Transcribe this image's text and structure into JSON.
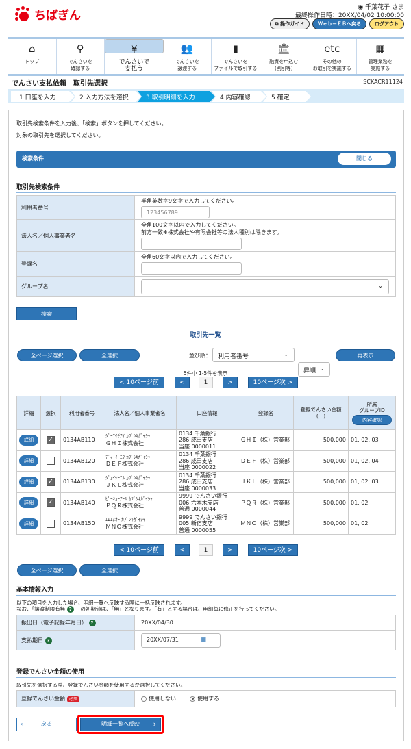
{
  "header": {
    "logo_text": "ちばぎん",
    "user_name": "千葉花子",
    "user_suffix": " さま",
    "last_op_label": "最終操作日時：",
    "last_op_time": "20XX/04/02 10:00:00",
    "guide_button": "操作ガイド",
    "web_eb_button": "Ｗｅｂ－ＥＢへ戻る",
    "logout_button": "ログアウト"
  },
  "nav": [
    {
      "icon": "home-icon",
      "glyph": "⌂",
      "label": "トップ"
    },
    {
      "icon": "search-icon",
      "glyph": "⚲",
      "label": "でんさいを\n確認する"
    },
    {
      "icon": "yen-doc-icon",
      "glyph": "¥",
      "label": "でんさいで\n支払う"
    },
    {
      "icon": "users-icon",
      "glyph": "👥",
      "label": "でんさいを\n譲渡する"
    },
    {
      "icon": "file-icon",
      "glyph": "▮",
      "label": "でんさいを\nファイルで取引する"
    },
    {
      "icon": "bank-icon",
      "glyph": "🏛",
      "label": "融資を申込む\n(割引等)"
    },
    {
      "icon": "etc-icon",
      "glyph": "etc",
      "label": "その他の\nお取引を実施する"
    },
    {
      "icon": "admin-icon",
      "glyph": "▦",
      "label": "管理業務を\n実施する"
    }
  ],
  "page": {
    "title": "でんさい支払依頼　取引先選択",
    "code": "SCKACR11124"
  },
  "steps": [
    "1 口座を入力",
    "2 入力方法を選択",
    "3 取引明細を入力",
    "4 内容確認",
    "5 確定"
  ],
  "instructions": [
    "取引先検索条件を入力後、「検索」ボタンを押してください。",
    "対象の取引先を選択してください。"
  ],
  "search_panel": {
    "title": "検索条件",
    "close": "閉じる",
    "heading": "取引先検索条件",
    "fields": [
      {
        "label": "利用者番号",
        "hint": "半角英数字9文字で入力してください。",
        "placeholder": "123456789"
      },
      {
        "label": "法人名／個人事業者名",
        "hint": "全角100文字以内で入力してください。",
        "hint2": "前方一致※株式会社や有限会社等の法人種別は除きます。"
      },
      {
        "label": "登録名",
        "hint": "全角60文字以内で入力してください。"
      },
      {
        "label": "グループ名"
      }
    ],
    "search_button": "検索"
  },
  "list": {
    "title": "取引先一覧",
    "select_all_pages": "全ページ選択",
    "select_all": "全選択",
    "sort_label": "並び順：",
    "sort_field": "利用者番号",
    "sort_order": "昇順",
    "redisplay": "再表示",
    "count_text": "5件中 1-5件を表示",
    "pagination": {
      "prev10": "< 10ページ前",
      "prev": "<",
      "page": "1",
      "next": ">",
      "next10": "10ページ次 >"
    },
    "columns": [
      "詳細",
      "選択",
      "利用者番号",
      "法人名／個人事業者名",
      "口座情報",
      "登録名",
      "登録でんさい金額\n(円)",
      "所属\nグループID"
    ],
    "group_confirm": "内容確認",
    "detail_button": "詳細",
    "rows": [
      {
        "checked": true,
        "user_no": "0134AB110",
        "kana": "ｼﾞｰｴｲﾁｱｲ ｶﾌﾞｼｷｶﾞｲｼｬ",
        "name": "ＧＨＩ株式会社",
        "acct1": "0134 千葉銀行",
        "acct2": "286 成田支店",
        "acct3": "当座 0000011",
        "reg": "ＧＨＩ（株）営業部",
        "amount": "500,000",
        "groups": "01, 02, 03"
      },
      {
        "checked": false,
        "user_no": "0134AB120",
        "kana": "ﾃﾞｨｰｲｰｴﾌ ｶﾌﾞｼｷｶﾞｲｼｬ",
        "name": "ＤＥＦ株式会社",
        "acct1": "0134 千葉銀行",
        "acct2": "286 成田支店",
        "acct3": "当座 0000022",
        "reg": "ＤＥＦ（株）営業部",
        "amount": "500,000",
        "groups": "01, 02, 04"
      },
      {
        "checked": true,
        "user_no": "0134AB130",
        "kana": "ｼﾞｪｲｹｰｴﾙ ｶﾌﾞｼｷｶﾞｲｼｬ",
        "name": "ＪＫＬ株式会社",
        "acct1": "0134 千葉銀行",
        "acct2": "286 成田支店",
        "acct3": "当座 0000033",
        "reg": "ＪＫＬ（株）営業部",
        "amount": "500,000",
        "groups": "01, 02, 03"
      },
      {
        "checked": true,
        "user_no": "0134AB140",
        "kana": "ﾋﾟｰｷｭｰｱｰﾙ ｶﾌﾞｼｷｶﾞｲｼｬ",
        "name": "ＰＱＲ株式会社",
        "acct1": "9999 でんさい銀行",
        "acct2": "006 六本木支店",
        "acct3": "普通 0000044",
        "reg": "ＰＱＲ（株）営業部",
        "amount": "500,000",
        "groups": "01, 02"
      },
      {
        "checked": false,
        "user_no": "0134AB150",
        "kana": "ｴﾑｴﾇｵｰ ｶﾌﾞｼｷｶﾞｲｼｬ",
        "name": "ＭＮＯ株式会社",
        "acct1": "9999 でんさい銀行",
        "acct2": "005 新宿支店",
        "acct3": "普通 0000055",
        "reg": "ＭＮＯ（株）営業部",
        "amount": "500,000",
        "groups": "01, 02"
      }
    ]
  },
  "basic": {
    "heading": "基本情報入力",
    "note1": "以下の項目を入力した場合、明細一覧へ反映する際に一括反映されます。",
    "note2a": "なお、「譲渡制限有無",
    "note2b": "」の初期値は、「無」となります。「有」とする場合は、明細毎に修正を行ってください。",
    "issue_label": "振出日（電子記録年月日）",
    "issue_value": "20XX/04/30",
    "due_label": "支払期日",
    "due_value": "20XX/07/31"
  },
  "amount_use": {
    "heading": "登録でんさい金額の使用",
    "note": "取引先を選択する際、登録でんさい金額を使用するか選択してください。",
    "label": "登録でんさい金額",
    "required": "必須",
    "opt_no": "使用しない",
    "opt_yes": "使用する",
    "selected": "使用する"
  },
  "footer": {
    "back": "戻る",
    "apply": "明細一覧へ反映"
  },
  "colors": {
    "primary": "#2e75b6",
    "step_current": "#0ea1e0",
    "brand": "#e60012",
    "highlight": "#ff0000"
  }
}
